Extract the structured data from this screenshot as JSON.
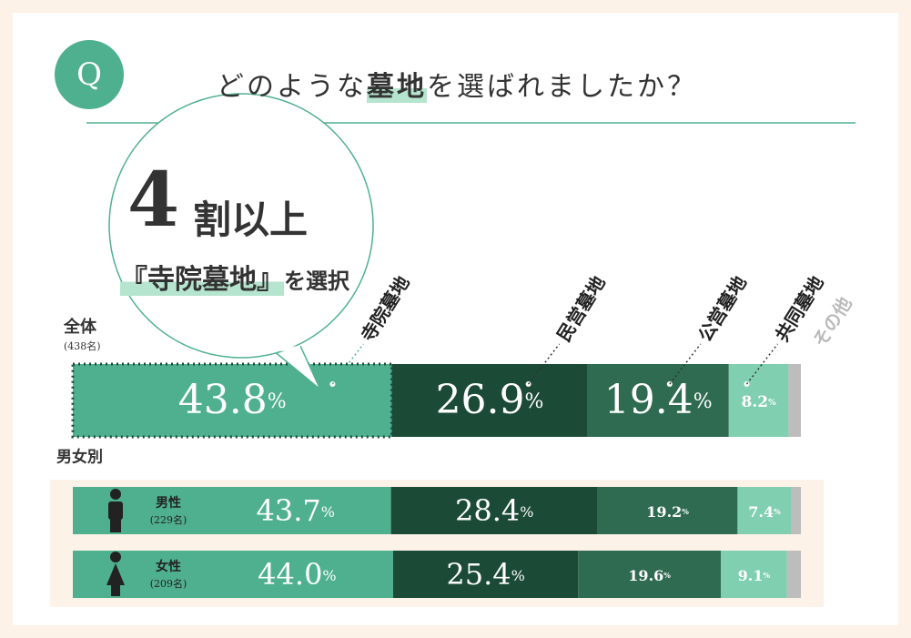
{
  "chart_data": {
    "type": "stacked-bar",
    "marker": "Q",
    "title": [
      "どのような",
      "墓地",
      "を選ばれましたか？"
    ],
    "callout": {
      "number": "4",
      "text": "割以上",
      "line2": [
        "『寺院墓地』",
        "を選択"
      ]
    },
    "categories": [
      "全体",
      "男性",
      "女性"
    ],
    "category_counts": [
      "(438名)",
      "(229名)",
      "(209名)"
    ],
    "group_label": "男女別",
    "unit": "%",
    "xlim": [
      0,
      100
    ],
    "series": [
      {
        "name": "寺院墓地",
        "color": "#4fb08f",
        "values": [
          43.8,
          43.7,
          44.0
        ],
        "value_labels": [
          "43.8",
          "43.7",
          "44.0"
        ]
      },
      {
        "name": "民営墓地",
        "color": "#1b4a36",
        "values": [
          26.9,
          28.4,
          25.4
        ],
        "value_labels": [
          "26.9",
          "28.4",
          "25.4"
        ]
      },
      {
        "name": "公営墓地",
        "color": "#2f6b51",
        "values": [
          19.4,
          19.2,
          19.6
        ],
        "value_labels": [
          "19.4",
          "19.2",
          "19.6"
        ]
      },
      {
        "name": "共同墓地",
        "color": "#7fcfb0",
        "values": [
          8.2,
          7.4,
          9.1
        ],
        "value_labels": [
          "8.2",
          "7.4",
          "9.1"
        ]
      },
      {
        "name": "その他",
        "color": "#bdbdbd",
        "values": [
          1.7,
          1.3,
          1.9
        ]
      }
    ]
  }
}
